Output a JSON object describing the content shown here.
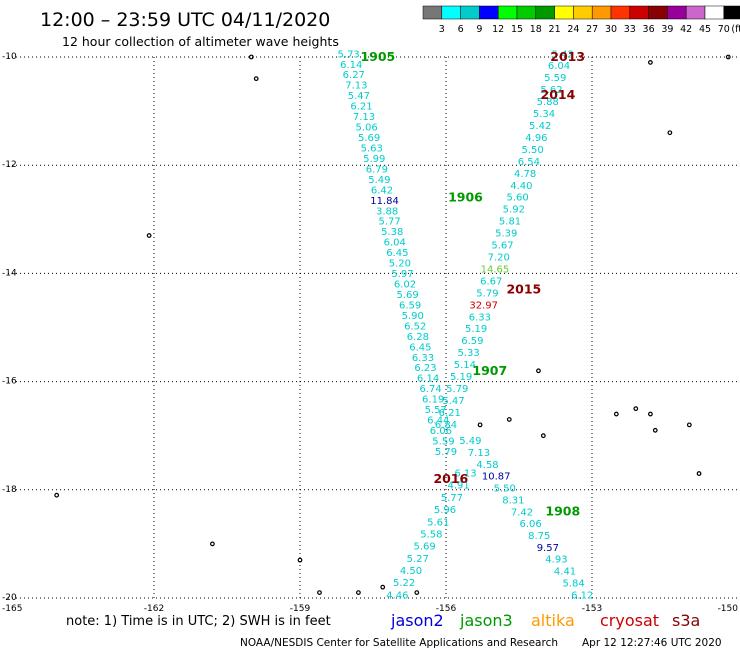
{
  "title": "12:00 – 23:59 UTC 04/11/2020",
  "subtitle": "12 hour collection of altimeter wave heights",
  "footer_note": "note: 1) Time is in UTC; 2) SWH is in feet",
  "credit": "NOAA/NESDIS Center for Satellite Applications and Research",
  "timestamp": "Apr 12 12:27:46 UTC 2020",
  "legend_sats": [
    {
      "name": "jason2",
      "color": "#0000dd"
    },
    {
      "name": "jason3",
      "color": "#009900"
    },
    {
      "name": "altika",
      "color": "#ff9900"
    },
    {
      "name": "cryosat",
      "color": "#cc0000"
    },
    {
      "name": "s3a",
      "color": "#880000"
    }
  ],
  "colorbar": {
    "unit": "(ft)",
    "ticks": [
      "3",
      "6",
      "9",
      "12",
      "15",
      "18",
      "21",
      "24",
      "27",
      "30",
      "33",
      "36",
      "39",
      "42",
      "45",
      "70"
    ],
    "colors": [
      "#777777",
      "#00ffff",
      "#00cccc",
      "#0000ff",
      "#00ff00",
      "#00cc00",
      "#009900",
      "#ffff00",
      "#ffcc00",
      "#ff9900",
      "#ff3300",
      "#cc0000",
      "#880000",
      "#990099",
      "#cc66cc",
      "#ffffff",
      "#000000"
    ]
  },
  "chart_data": {
    "type": "scatter",
    "xlim": [
      -165,
      -150
    ],
    "ylim": [
      -20,
      -10
    ],
    "xticks": [
      "-165",
      "-162",
      "-159",
      "-156",
      "-153",
      "-150"
    ],
    "yticks": [
      "-10",
      "-12",
      "-14",
      "-16",
      "-18",
      "-20"
    ],
    "time_labels": [
      {
        "text": "1905",
        "lon": -157.4,
        "lat": -10.0,
        "color": "#009900"
      },
      {
        "text": "1906",
        "lon": -155.6,
        "lat": -12.6,
        "color": "#009900"
      },
      {
        "text": "1907",
        "lon": -155.1,
        "lat": -15.8,
        "color": "#009900"
      },
      {
        "text": "1908",
        "lon": -153.6,
        "lat": -18.4,
        "color": "#009900"
      },
      {
        "text": "2013",
        "lon": -153.5,
        "lat": -10.0,
        "color": "#880000"
      },
      {
        "text": "2014",
        "lon": -153.7,
        "lat": -10.7,
        "color": "#880000"
      },
      {
        "text": "2015",
        "lon": -154.4,
        "lat": -14.3,
        "color": "#880000"
      },
      {
        "text": "2016",
        "lon": -155.9,
        "lat": -17.8,
        "color": "#880000"
      }
    ],
    "tracks": [
      {
        "color": "#00cccc",
        "lon_start": -158.0,
        "lat_start": -9.95,
        "lon_end": -156.0,
        "lat_end": -17.3,
        "values": [
          "5.73",
          "6.14",
          "6.27",
          "7.13",
          "5.47",
          "6.21",
          "7.13",
          "5.06",
          "5.69",
          "5.63",
          "5.99",
          "6.79",
          "5.49",
          "6.42",
          "11.84",
          "3.88",
          "5.77",
          "5.38",
          "6.04",
          "6.45",
          "5.20",
          "5.97",
          "6.02",
          "5.69",
          "6.59",
          "5.90",
          "6.52",
          "6.28",
          "6.45",
          "6.33",
          "6.23",
          "6.14",
          "6.74",
          "6.19",
          "5.57",
          "6.44",
          "6.06",
          "5.59",
          "5.79"
        ],
        "special": {
          "11.84": "#000099"
        }
      },
      {
        "color": "#00cccc",
        "lon_start": -155.6,
        "lat_start": -17.7,
        "lon_end": -157.0,
        "lat_end": -19.95,
        "values": [
          "6.13",
          "4.91",
          "5.77",
          "5.96",
          "5.61",
          "5.58",
          "5.69",
          "5.27",
          "4.50",
          "5.22",
          "4.46"
        ],
        "special": {}
      },
      {
        "color": "#00cccc",
        "lon_start": -153.6,
        "lat_start": -9.95,
        "lon_end": -156.0,
        "lat_end": -16.8,
        "values": [
          "5.42",
          "6.04",
          "5.59",
          "5.62",
          "5.88",
          "5.34",
          "5.42",
          "4.96",
          "5.50",
          "6.54",
          "4.78",
          "4.40",
          "5.60",
          "5.92",
          "5.81",
          "5.39",
          "5.67",
          "7.20",
          "14.65",
          "6.67",
          "5.79",
          "32.97",
          "6.33",
          "5.19",
          "6.59",
          "5.33",
          "5.14",
          "5.19",
          "5.79",
          "5.47",
          "6.21",
          "6.84"
        ],
        "special": {
          "14.65": "#66cc33",
          "32.97": "#cc0000"
        }
      },
      {
        "color": "#00cccc",
        "lon_start": -155.5,
        "lat_start": -17.1,
        "lon_end": -153.2,
        "lat_end": -19.95,
        "values": [
          "5.49",
          "7.13",
          "4.58",
          "10.87",
          "5.50",
          "8.31",
          "7.42",
          "6.06",
          "8.75",
          "9.57",
          "4.93",
          "4.41",
          "5.84",
          "6.12"
        ],
        "special": {
          "10.87": "#000099",
          "9.57": "#000099"
        }
      }
    ],
    "islands": [
      {
        "lon": -162.1,
        "lat": -13.3
      },
      {
        "lon": -164.0,
        "lat": -18.1
      },
      {
        "lon": -160.8,
        "lat": -19.0
      },
      {
        "lon": -159.0,
        "lat": -19.3
      },
      {
        "lon": -158.6,
        "lat": -19.9
      },
      {
        "lon": -157.3,
        "lat": -19.8
      },
      {
        "lon": -157.8,
        "lat": -19.9
      },
      {
        "lon": -156.6,
        "lat": -19.9
      },
      {
        "lon": -159.9,
        "lat": -10.4
      },
      {
        "lon": -160.0,
        "lat": -10.0
      },
      {
        "lon": -151.8,
        "lat": -10.1
      },
      {
        "lon": -150.2,
        "lat": -10.0
      },
      {
        "lon": -151.4,
        "lat": -11.4
      },
      {
        "lon": -155.3,
        "lat": -16.8
      },
      {
        "lon": -154.7,
        "lat": -16.7
      },
      {
        "lon": -154.0,
        "lat": -17.0
      },
      {
        "lon": -152.5,
        "lat": -16.6
      },
      {
        "lon": -152.1,
        "lat": -16.5
      },
      {
        "lon": -151.8,
        "lat": -16.6
      },
      {
        "lon": -151.7,
        "lat": -16.9
      },
      {
        "lon": -151.0,
        "lat": -16.8
      },
      {
        "lon": -150.8,
        "lat": -17.7
      },
      {
        "lon": -154.1,
        "lat": -15.8
      }
    ]
  }
}
